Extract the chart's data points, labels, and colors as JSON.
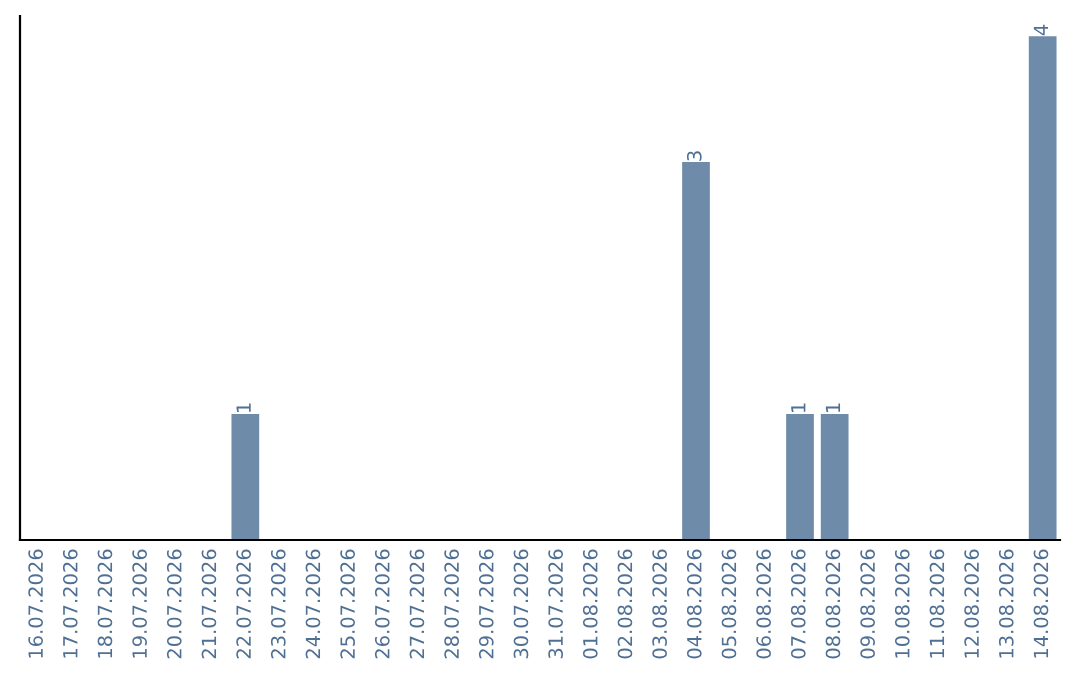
{
  "chart_data": {
    "type": "bar",
    "categories": [
      "16.07.2026",
      "17.07.2026",
      "18.07.2026",
      "19.07.2026",
      "20.07.2026",
      "21.07.2026",
      "22.07.2026",
      "23.07.2026",
      "24.07.2026",
      "25.07.2026",
      "26.07.2026",
      "27.07.2026",
      "28.07.2026",
      "29.07.2026",
      "30.07.2026",
      "31.07.2026",
      "01.08.2026",
      "02.08.2026",
      "03.08.2026",
      "04.08.2026",
      "05.08.2026",
      "06.08.2026",
      "07.08.2026",
      "08.08.2026",
      "09.08.2026",
      "10.08.2026",
      "11.08.2026",
      "12.08.2026",
      "13.08.2026",
      "14.08.2026"
    ],
    "values": [
      0,
      0,
      0,
      0,
      0,
      0,
      1,
      0,
      0,
      0,
      0,
      0,
      0,
      0,
      0,
      0,
      0,
      0,
      0,
      3,
      0,
      0,
      1,
      1,
      0,
      0,
      0,
      0,
      0,
      4
    ],
    "value_labels": [
      null,
      null,
      null,
      null,
      null,
      null,
      "1",
      null,
      null,
      null,
      null,
      null,
      null,
      null,
      null,
      null,
      null,
      null,
      null,
      "3",
      null,
      null,
      "1",
      "1",
      null,
      null,
      null,
      null,
      null,
      "4"
    ],
    "color": "#6e8caa",
    "tick_labels": "x",
    "grid": false,
    "legend": false
  }
}
